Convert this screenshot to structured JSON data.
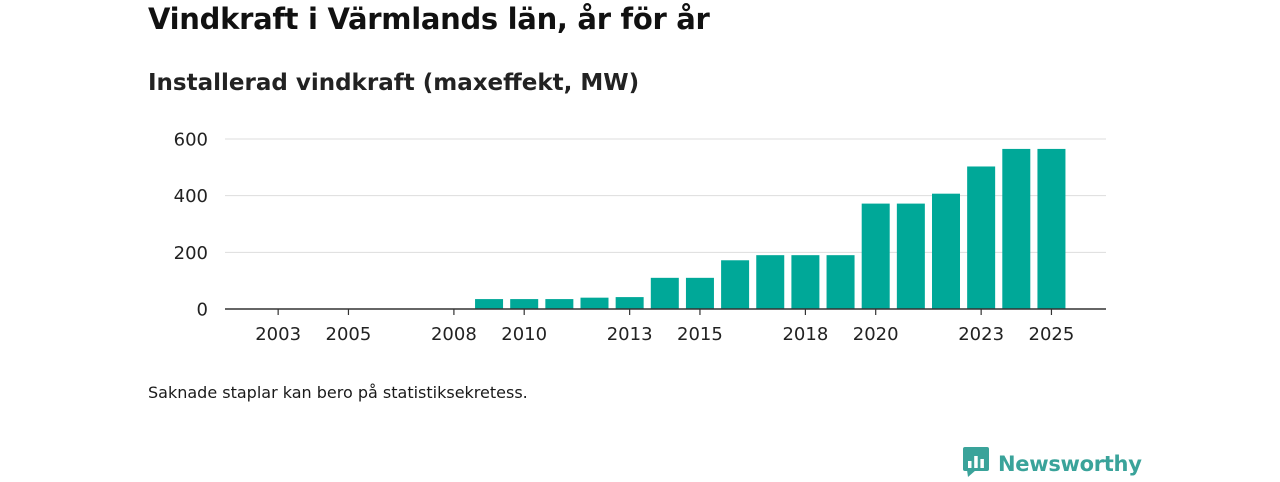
{
  "colors": {
    "bar": "#00a898",
    "grid": "#dddddd",
    "axis": "#333333",
    "brand": "#3aa39a"
  },
  "chart_data": {
    "type": "bar",
    "title": "Vindkraft i Värmlands län, år för år",
    "subtitle": "Installerad vindkraft (maxeffekt, MW)",
    "xlabel": "",
    "ylabel": "",
    "ylim": [
      0,
      600
    ],
    "yticks": [
      0,
      200,
      400,
      600
    ],
    "categories": [
      "2002",
      "2003",
      "2004",
      "2005",
      "2006",
      "2007",
      "2008",
      "2009",
      "2010",
      "2011",
      "2012",
      "2013",
      "2014",
      "2015",
      "2016",
      "2017",
      "2018",
      "2019",
      "2020",
      "2021",
      "2022",
      "2023",
      "2024",
      "2025"
    ],
    "xtick_labels": [
      "2003",
      "2005",
      "2008",
      "2010",
      "2013",
      "2015",
      "2018",
      "2020",
      "2023",
      "2025"
    ],
    "values": [
      null,
      null,
      null,
      null,
      null,
      null,
      null,
      35,
      35,
      35,
      40,
      42,
      110,
      110,
      172,
      190,
      190,
      190,
      372,
      372,
      407,
      503,
      565,
      565
    ],
    "grid": true,
    "legend": "none"
  },
  "footnote": "Saknade staplar kan bero på statistiksekretess.",
  "brand": {
    "name": "Newsworthy",
    "icon": "newsworthy-logo-icon"
  }
}
